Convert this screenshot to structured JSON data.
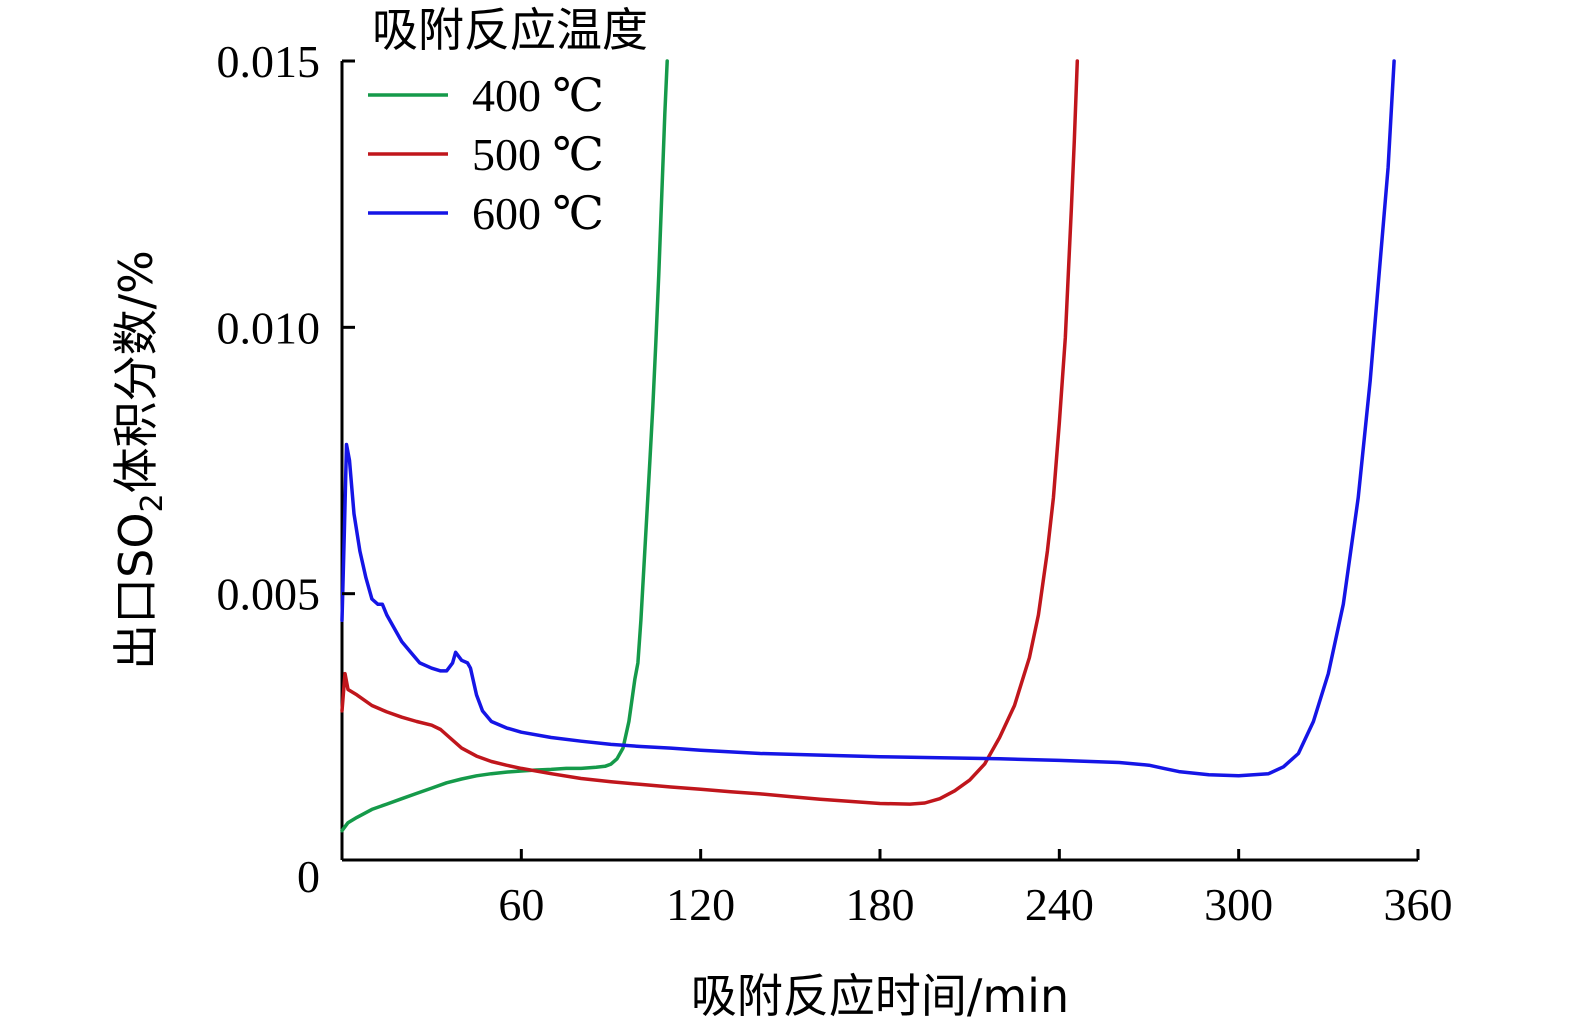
{
  "chart_data": {
    "type": "line",
    "xlabel": "吸附反应时间/min",
    "ylabel_parts": {
      "prefix": "出口SO",
      "subscript": "2",
      "suffix": "体积分数/%"
    },
    "xlim": [
      0,
      360
    ],
    "ylim": [
      0,
      0.015
    ],
    "x_ticks": [
      60,
      120,
      180,
      240,
      300,
      360
    ],
    "x_tick_labels": [
      "60",
      "120",
      "180",
      "240",
      "300",
      "360"
    ],
    "y_ticks": [
      0,
      0.005,
      0.01,
      0.015
    ],
    "y_tick_labels": [
      "0",
      "0.005",
      "0.010",
      "0.015"
    ],
    "grid": false,
    "legend": {
      "title": "吸附反应温度",
      "placement": "top-left"
    },
    "series": [
      {
        "name": "400 ℃",
        "color": "#159a4a",
        "points": [
          [
            0,
            0.00055
          ],
          [
            2,
            0.0007
          ],
          [
            5,
            0.0008
          ],
          [
            10,
            0.00095
          ],
          [
            15,
            0.00105
          ],
          [
            20,
            0.00115
          ],
          [
            25,
            0.00125
          ],
          [
            30,
            0.00135
          ],
          [
            35,
            0.00145
          ],
          [
            40,
            0.00152
          ],
          [
            45,
            0.00158
          ],
          [
            50,
            0.00162
          ],
          [
            55,
            0.00165
          ],
          [
            60,
            0.00167
          ],
          [
            65,
            0.00169
          ],
          [
            70,
            0.0017
          ],
          [
            75,
            0.00172
          ],
          [
            80,
            0.00172
          ],
          [
            85,
            0.00174
          ],
          [
            88,
            0.00176
          ],
          [
            90,
            0.0018
          ],
          [
            92,
            0.0019
          ],
          [
            94,
            0.0021
          ],
          [
            96,
            0.0026
          ],
          [
            97,
            0.003
          ],
          [
            98,
            0.0034
          ],
          [
            99,
            0.0037
          ],
          [
            100,
            0.0045
          ],
          [
            101,
            0.0055
          ],
          [
            102,
            0.0065
          ],
          [
            103,
            0.0075
          ],
          [
            104,
            0.0085
          ],
          [
            105,
            0.0097
          ],
          [
            106,
            0.011
          ],
          [
            107,
            0.0125
          ],
          [
            108,
            0.014
          ],
          [
            108.8,
            0.015
          ]
        ]
      },
      {
        "name": "500 ℃",
        "color": "#c0161c",
        "points": [
          [
            0,
            0.0028
          ],
          [
            1,
            0.0035
          ],
          [
            2,
            0.0032
          ],
          [
            5,
            0.0031
          ],
          [
            10,
            0.0029
          ],
          [
            15,
            0.00278
          ],
          [
            20,
            0.00268
          ],
          [
            25,
            0.0026
          ],
          [
            30,
            0.00253
          ],
          [
            33,
            0.00245
          ],
          [
            36,
            0.0023
          ],
          [
            40,
            0.0021
          ],
          [
            45,
            0.00195
          ],
          [
            50,
            0.00185
          ],
          [
            55,
            0.00178
          ],
          [
            60,
            0.00172
          ],
          [
            70,
            0.00162
          ],
          [
            80,
            0.00153
          ],
          [
            90,
            0.00147
          ],
          [
            100,
            0.00142
          ],
          [
            110,
            0.00137
          ],
          [
            120,
            0.00133
          ],
          [
            130,
            0.00128
          ],
          [
            140,
            0.00124
          ],
          [
            150,
            0.00119
          ],
          [
            160,
            0.00114
          ],
          [
            170,
            0.0011
          ],
          [
            180,
            0.00106
          ],
          [
            190,
            0.00105
          ],
          [
            195,
            0.00107
          ],
          [
            200,
            0.00115
          ],
          [
            205,
            0.0013
          ],
          [
            210,
            0.0015
          ],
          [
            215,
            0.0018
          ],
          [
            220,
            0.0023
          ],
          [
            225,
            0.0029
          ],
          [
            230,
            0.0038
          ],
          [
            233,
            0.0046
          ],
          [
            236,
            0.0058
          ],
          [
            238,
            0.0068
          ],
          [
            240,
            0.0082
          ],
          [
            242,
            0.0098
          ],
          [
            243,
            0.011
          ],
          [
            244,
            0.0122
          ],
          [
            245,
            0.0135
          ],
          [
            246,
            0.015
          ]
        ]
      },
      {
        "name": "600 ℃",
        "color": "#1515e6",
        "points": [
          [
            0,
            0.0045
          ],
          [
            0.8,
            0.0062
          ],
          [
            1.5,
            0.0078
          ],
          [
            2.5,
            0.0075
          ],
          [
            4,
            0.0065
          ],
          [
            6,
            0.0058
          ],
          [
            8,
            0.0053
          ],
          [
            10,
            0.0049
          ],
          [
            12,
            0.0048
          ],
          [
            13.5,
            0.0048
          ],
          [
            15,
            0.0046
          ],
          [
            18,
            0.0043
          ],
          [
            20,
            0.0041
          ],
          [
            23,
            0.0039
          ],
          [
            26,
            0.0037
          ],
          [
            30,
            0.0036
          ],
          [
            33,
            0.00355
          ],
          [
            35,
            0.00355
          ],
          [
            37,
            0.0037
          ],
          [
            38,
            0.0039
          ],
          [
            40,
            0.00375
          ],
          [
            42,
            0.0037
          ],
          [
            43,
            0.0036
          ],
          [
            45,
            0.0031
          ],
          [
            47,
            0.0028
          ],
          [
            50,
            0.0026
          ],
          [
            55,
            0.00248
          ],
          [
            60,
            0.0024
          ],
          [
            70,
            0.0023
          ],
          [
            80,
            0.00223
          ],
          [
            90,
            0.00217
          ],
          [
            100,
            0.00213
          ],
          [
            110,
            0.0021
          ],
          [
            120,
            0.00206
          ],
          [
            140,
            0.002
          ],
          [
            160,
            0.00197
          ],
          [
            180,
            0.00194
          ],
          [
            200,
            0.00192
          ],
          [
            220,
            0.0019
          ],
          [
            240,
            0.00187
          ],
          [
            260,
            0.00183
          ],
          [
            270,
            0.00178
          ],
          [
            275,
            0.00172
          ],
          [
            280,
            0.00166
          ],
          [
            290,
            0.0016
          ],
          [
            300,
            0.00158
          ],
          [
            310,
            0.00162
          ],
          [
            315,
            0.00175
          ],
          [
            320,
            0.002
          ],
          [
            325,
            0.0026
          ],
          [
            330,
            0.0035
          ],
          [
            335,
            0.0048
          ],
          [
            340,
            0.0068
          ],
          [
            344,
            0.009
          ],
          [
            347,
            0.011
          ],
          [
            350,
            0.013
          ],
          [
            352,
            0.015
          ]
        ]
      }
    ]
  }
}
